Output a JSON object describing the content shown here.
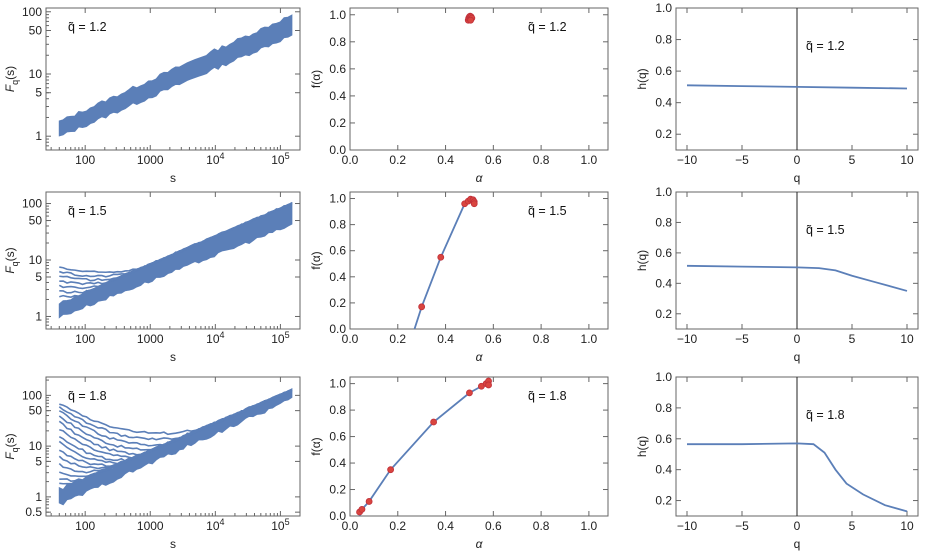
{
  "colors": {
    "curve": "#5b7fb8",
    "point_fill": "#d9453f",
    "point_stroke": "#c0303a",
    "frame": "#666666",
    "text": "#222222"
  },
  "chart_data": [
    {
      "id": "Fq_12",
      "type": "line",
      "xscale": "log",
      "yscale": "log",
      "xlabel": "s",
      "ylabel": "F_q(s)",
      "annotation": "q̃  =  1.2",
      "xlim": [
        25,
        200000
      ],
      "ylim": [
        0.6,
        115
      ],
      "xticks": [
        {
          "v": 100,
          "label": "100"
        },
        {
          "v": 1000,
          "label": "1000"
        },
        {
          "v": 10000,
          "label": "10",
          "exp": "4"
        },
        {
          "v": 100000,
          "label": "10",
          "exp": "5"
        }
      ],
      "yticks": [
        {
          "v": 1,
          "label": "1"
        },
        {
          "v": 5,
          "label": "5"
        },
        {
          "v": 10,
          "label": "10"
        },
        {
          "v": 50,
          "label": "50"
        },
        {
          "v": 100,
          "label": "100"
        }
      ],
      "band": {
        "x": [
          40,
          150000
        ],
        "low": [
          0.98,
          42
        ],
        "high": [
          1.7,
          88
        ]
      },
      "wiggle": 0.03,
      "fans": []
    },
    {
      "id": "f_12",
      "type": "scatter",
      "xlabel": "α",
      "ylabel": "f(α)",
      "annotation": "q̃  =  1.2",
      "xlim": [
        0,
        1.08
      ],
      "ylim": [
        0,
        1.05
      ],
      "xticks": [
        {
          "v": 0,
          "label": "0.0"
        },
        {
          "v": 0.2,
          "label": "0.2"
        },
        {
          "v": 0.4,
          "label": "0.4"
        },
        {
          "v": 0.6,
          "label": "0.6"
        },
        {
          "v": 0.8,
          "label": "0.8"
        },
        {
          "v": 1,
          "label": "1.0"
        }
      ],
      "yticks": [
        {
          "v": 0,
          "label": "0.0"
        },
        {
          "v": 0.2,
          "label": "0.2"
        },
        {
          "v": 0.4,
          "label": "0.4"
        },
        {
          "v": 0.6,
          "label": "0.6"
        },
        {
          "v": 0.8,
          "label": "0.8"
        },
        {
          "v": 1,
          "label": "1.0"
        }
      ],
      "curve": [
        [
          0.495,
          0.96
        ],
        [
          0.5,
          0.985
        ],
        [
          0.505,
          0.99
        ],
        [
          0.51,
          0.975
        ]
      ],
      "points": [
        [
          0.495,
          0.96
        ],
        [
          0.497,
          0.975
        ],
        [
          0.5,
          0.985
        ],
        [
          0.503,
          0.99
        ],
        [
          0.507,
          0.985
        ],
        [
          0.51,
          0.975
        ],
        [
          0.505,
          0.96
        ]
      ]
    },
    {
      "id": "h_12",
      "type": "line",
      "xlabel": "q",
      "ylabel": "h(q)",
      "annotation": "q̃  =  1.2",
      "xlim": [
        -11,
        11
      ],
      "ylim": [
        0.1,
        1.0
      ],
      "xticks": [
        {
          "v": -10,
          "label": "−10"
        },
        {
          "v": -5,
          "label": "−5"
        },
        {
          "v": 0,
          "label": "0"
        },
        {
          "v": 5,
          "label": "5"
        },
        {
          "v": 10,
          "label": "10"
        }
      ],
      "yticks": [
        {
          "v": 0.2,
          "label": "0.2"
        },
        {
          "v": 0.4,
          "label": "0.4"
        },
        {
          "v": 0.6,
          "label": "0.6"
        },
        {
          "v": 0.8,
          "label": "0.8"
        },
        {
          "v": 1.0,
          "label": "1.0"
        }
      ],
      "vline": 0,
      "line": [
        [
          -10,
          0.51
        ],
        [
          -5,
          0.505
        ],
        [
          0,
          0.5
        ],
        [
          5,
          0.495
        ],
        [
          10,
          0.49
        ]
      ]
    },
    {
      "id": "Fq_15",
      "type": "line",
      "xscale": "log",
      "yscale": "log",
      "xlabel": "s",
      "ylabel": "F_q(s)",
      "annotation": "q̃  =  1.5",
      "xlim": [
        25,
        200000
      ],
      "ylim": [
        0.6,
        160
      ],
      "xticks": [
        {
          "v": 100,
          "label": "100"
        },
        {
          "v": 1000,
          "label": "1000"
        },
        {
          "v": 10000,
          "label": "10",
          "exp": "4"
        },
        {
          "v": 100000,
          "label": "10",
          "exp": "5"
        }
      ],
      "yticks": [
        {
          "v": 1,
          "label": "1"
        },
        {
          "v": 5,
          "label": "5"
        },
        {
          "v": 10,
          "label": "10"
        },
        {
          "v": 50,
          "label": "50"
        },
        {
          "v": 100,
          "label": "100"
        }
      ],
      "band": {
        "x": [
          40,
          150000
        ],
        "low": [
          0.98,
          42
        ],
        "high": [
          1.7,
          100
        ]
      },
      "wiggle": 0.03,
      "fans": [
        [
          40,
          7.5
        ],
        [
          40,
          6.3
        ],
        [
          40,
          5.3
        ],
        [
          40,
          4.3
        ],
        [
          40,
          3.5
        ],
        [
          40,
          2.8
        ],
        [
          40,
          2.3
        ]
      ]
    },
    {
      "id": "f_15",
      "type": "scatter",
      "xlabel": "α",
      "ylabel": "f(α)",
      "annotation": "q̃  =  1.5",
      "xlim": [
        0,
        1.08
      ],
      "ylim": [
        0,
        1.05
      ],
      "xticks": [
        {
          "v": 0,
          "label": "0.0"
        },
        {
          "v": 0.2,
          "label": "0.2"
        },
        {
          "v": 0.4,
          "label": "0.4"
        },
        {
          "v": 0.6,
          "label": "0.6"
        },
        {
          "v": 0.8,
          "label": "0.8"
        },
        {
          "v": 1,
          "label": "1.0"
        }
      ],
      "yticks": [
        {
          "v": 0,
          "label": "0.0"
        },
        {
          "v": 0.2,
          "label": "0.2"
        },
        {
          "v": 0.4,
          "label": "0.4"
        },
        {
          "v": 0.6,
          "label": "0.6"
        },
        {
          "v": 0.8,
          "label": "0.8"
        },
        {
          "v": 1,
          "label": "1.0"
        }
      ],
      "curve": [
        [
          0.27,
          0
        ],
        [
          0.3,
          0.17
        ],
        [
          0.38,
          0.55
        ],
        [
          0.48,
          0.96
        ],
        [
          0.5,
          0.99
        ],
        [
          0.52,
          0.98
        ]
      ],
      "points": [
        [
          0.3,
          0.17
        ],
        [
          0.38,
          0.55
        ],
        [
          0.48,
          0.96
        ],
        [
          0.495,
          0.98
        ],
        [
          0.505,
          0.995
        ],
        [
          0.515,
          0.99
        ],
        [
          0.52,
          0.975
        ],
        [
          0.52,
          0.96
        ]
      ]
    },
    {
      "id": "h_15",
      "type": "line",
      "xlabel": "q",
      "ylabel": "h(q)",
      "annotation": "q̃  =  1.5",
      "xlim": [
        -11,
        11
      ],
      "ylim": [
        0.1,
        1.0
      ],
      "xticks": [
        {
          "v": -10,
          "label": "−10"
        },
        {
          "v": -5,
          "label": "−5"
        },
        {
          "v": 0,
          "label": "0"
        },
        {
          "v": 5,
          "label": "5"
        },
        {
          "v": 10,
          "label": "10"
        }
      ],
      "yticks": [
        {
          "v": 0.2,
          "label": "0.2"
        },
        {
          "v": 0.4,
          "label": "0.4"
        },
        {
          "v": 0.6,
          "label": "0.6"
        },
        {
          "v": 0.8,
          "label": "0.8"
        },
        {
          "v": 1.0,
          "label": "1.0"
        }
      ],
      "vline": 0,
      "line": [
        [
          -10,
          0.515
        ],
        [
          -5,
          0.51
        ],
        [
          0,
          0.505
        ],
        [
          2,
          0.5
        ],
        [
          3.5,
          0.485
        ],
        [
          5,
          0.45
        ],
        [
          7,
          0.41
        ],
        [
          10,
          0.35
        ]
      ]
    },
    {
      "id": "Fq_18",
      "type": "line",
      "xscale": "log",
      "yscale": "log",
      "xlabel": "s",
      "ylabel": "F_q(s)",
      "annotation": "q̃  =  1.8",
      "xlim": [
        25,
        200000
      ],
      "ylim": [
        0.42,
        230
      ],
      "xticks": [
        {
          "v": 100,
          "label": "100"
        },
        {
          "v": 1000,
          "label": "1000"
        },
        {
          "v": 10000,
          "label": "10",
          "exp": "4"
        },
        {
          "v": 100000,
          "label": "10",
          "exp": "5"
        }
      ],
      "yticks": [
        {
          "v": 0.5,
          "label": "0.5"
        },
        {
          "v": 1,
          "label": "1"
        },
        {
          "v": 5,
          "label": "5"
        },
        {
          "v": 10,
          "label": "10"
        },
        {
          "v": 50,
          "label": "50"
        },
        {
          "v": 100,
          "label": "100"
        }
      ],
      "band": {
        "x": [
          40,
          150000
        ],
        "low": [
          0.7,
          85
        ],
        "high": [
          1.4,
          125
        ]
      },
      "wiggle": 0.04,
      "fans": [
        [
          40,
          70
        ],
        [
          40,
          60
        ],
        [
          40,
          50
        ],
        [
          40,
          40
        ],
        [
          40,
          30
        ],
        [
          40,
          22
        ],
        [
          40,
          16
        ],
        [
          40,
          12
        ],
        [
          40,
          8.5
        ],
        [
          40,
          6
        ],
        [
          40,
          4.3
        ],
        [
          40,
          3.1
        ],
        [
          40,
          2.3
        ],
        [
          40,
          1.8
        ]
      ]
    },
    {
      "id": "f_18",
      "type": "scatter",
      "xlabel": "α",
      "ylabel": "f(α)",
      "annotation": "q̃  =  1.8",
      "xlim": [
        0,
        1.08
      ],
      "ylim": [
        0,
        1.05
      ],
      "xticks": [
        {
          "v": 0,
          "label": "0.0"
        },
        {
          "v": 0.2,
          "label": "0.2"
        },
        {
          "v": 0.4,
          "label": "0.4"
        },
        {
          "v": 0.6,
          "label": "0.6"
        },
        {
          "v": 0.8,
          "label": "0.8"
        },
        {
          "v": 1,
          "label": "1.0"
        }
      ],
      "yticks": [
        {
          "v": 0,
          "label": "0.0"
        },
        {
          "v": 0.2,
          "label": "0.2"
        },
        {
          "v": 0.4,
          "label": "0.4"
        },
        {
          "v": 0.6,
          "label": "0.6"
        },
        {
          "v": 0.8,
          "label": "0.8"
        },
        {
          "v": 1,
          "label": "1.0"
        }
      ],
      "curve": [
        [
          0.04,
          0
        ],
        [
          0.05,
          0.05
        ],
        [
          0.08,
          0.11
        ],
        [
          0.17,
          0.35
        ],
        [
          0.35,
          0.71
        ],
        [
          0.5,
          0.93
        ],
        [
          0.55,
          0.98
        ],
        [
          0.58,
          1.0
        ]
      ],
      "points": [
        [
          0.04,
          0.03
        ],
        [
          0.05,
          0.05
        ],
        [
          0.08,
          0.11
        ],
        [
          0.17,
          0.35
        ],
        [
          0.35,
          0.71
        ],
        [
          0.5,
          0.93
        ],
        [
          0.55,
          0.98
        ],
        [
          0.57,
          1.0
        ],
        [
          0.58,
          1.02
        ],
        [
          0.58,
          0.99
        ]
      ]
    },
    {
      "id": "h_18",
      "type": "line",
      "xlabel": "q",
      "ylabel": "h(q)",
      "annotation": "q̃  =  1.8",
      "xlim": [
        -11,
        11
      ],
      "ylim": [
        0.1,
        1.0
      ],
      "xticks": [
        {
          "v": -10,
          "label": "−10"
        },
        {
          "v": -5,
          "label": "−5"
        },
        {
          "v": 0,
          "label": "0"
        },
        {
          "v": 5,
          "label": "5"
        },
        {
          "v": 10,
          "label": "10"
        }
      ],
      "yticks": [
        {
          "v": 0.2,
          "label": "0.2"
        },
        {
          "v": 0.4,
          "label": "0.4"
        },
        {
          "v": 0.6,
          "label": "0.6"
        },
        {
          "v": 0.8,
          "label": "0.8"
        },
        {
          "v": 1.0,
          "label": "1.0"
        }
      ],
      "vline": 0,
      "line": [
        [
          -10,
          0.565
        ],
        [
          -5,
          0.565
        ],
        [
          0,
          0.57
        ],
        [
          1.5,
          0.565
        ],
        [
          2.5,
          0.51
        ],
        [
          3.5,
          0.4
        ],
        [
          4.5,
          0.31
        ],
        [
          6,
          0.24
        ],
        [
          8,
          0.17
        ],
        [
          10,
          0.13
        ]
      ]
    }
  ]
}
